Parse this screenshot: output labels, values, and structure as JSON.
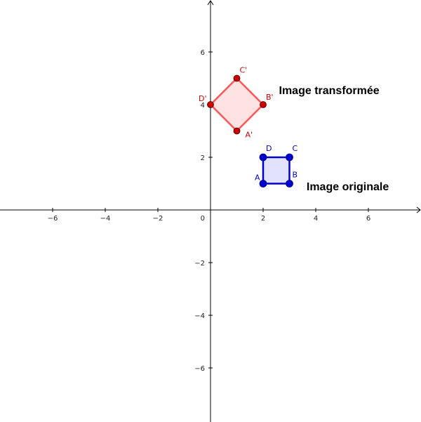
{
  "chart_data": {
    "type": "scatter",
    "title": "",
    "xlabel": "",
    "ylabel": "",
    "xlim": [
      -8,
      8
    ],
    "ylim": [
      -8,
      8
    ],
    "grid": false,
    "x_ticks": [
      -6,
      -4,
      -2,
      2,
      4,
      6
    ],
    "y_ticks": [
      -6,
      -4,
      -2,
      2,
      4,
      6
    ],
    "origin_label": "0",
    "series": [
      {
        "name": "Image originale",
        "color": "#0000cc",
        "fill": "#e0e0ff",
        "points": [
          {
            "label": "A",
            "x": 2,
            "y": 1
          },
          {
            "label": "B",
            "x": 3,
            "y": 1
          },
          {
            "label": "C",
            "x": 3,
            "y": 2
          },
          {
            "label": "D",
            "x": 2,
            "y": 2
          }
        ]
      },
      {
        "name": "Image transformée",
        "color": "#cc0000",
        "stroke": "#ff5555",
        "fill": "#ffe0e0",
        "points": [
          {
            "label": "A'",
            "x": 1,
            "y": 3
          },
          {
            "label": "B'",
            "x": 2,
            "y": 4
          },
          {
            "label": "C'",
            "x": 1,
            "y": 5
          },
          {
            "label": "D'",
            "x": 0,
            "y": 4
          }
        ]
      }
    ],
    "annotations": [
      {
        "text": "Image transformée",
        "x": 2.6,
        "y": 4.4
      },
      {
        "text": "Image originale",
        "x": 3.65,
        "y": 0.75
      }
    ]
  }
}
